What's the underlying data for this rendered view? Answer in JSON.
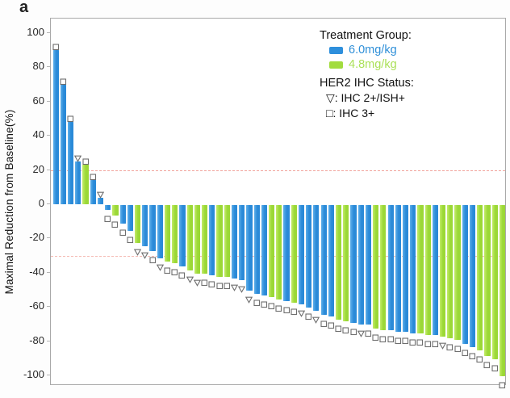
{
  "panel_label": "a",
  "colors": {
    "blue": "#2E8FDC",
    "green": "#A2DC3E",
    "blue_gradient": [
      "#5FB0EA",
      "#2A8AD8"
    ],
    "green_gradient": [
      "#C3EC6A",
      "#9BD836"
    ],
    "refline": "#F2A49C",
    "marker_stroke": "#6E6E6E",
    "frame": "#A9A9A9",
    "legend_blue_text": "#2E8FD8",
    "legend_green_text": "#ABE159"
  },
  "legend": {
    "treatment_title": "Treatment Group:",
    "groups": [
      {
        "key": "6.0",
        "label": "6.0mg/kg"
      },
      {
        "key": "4.8",
        "label": "4.8mg/kg"
      }
    ],
    "her2_title": "HER2 IHC Status:",
    "her2_items": [
      {
        "glyph": "tri",
        "label": "▽: IHC 2+/ISH+"
      },
      {
        "glyph": "sq",
        "label": "□: IHC 3+"
      }
    ]
  },
  "chart_data": {
    "type": "bar",
    "subtype": "waterfall",
    "title": "",
    "xlabel": "",
    "ylabel": "Maximal Reduction from Baseline(%)",
    "ylim": [
      -106,
      108
    ],
    "yticks": [
      100,
      80,
      60,
      40,
      20,
      0,
      -20,
      -40,
      -60,
      -80,
      -100
    ],
    "grid": false,
    "legend_position": "top-right",
    "reference_lines": [
      {
        "y": 20
      },
      {
        "y": -30
      }
    ],
    "series_key": {
      "6.0": "6.0mg/kg",
      "4.8": "4.8mg/kg"
    },
    "marker_key": {
      "sq": "IHC 3+",
      "tri": "IHC 2+/ISH+"
    },
    "bars": [
      {
        "value": 90,
        "group": "6.0",
        "ihc": "sq"
      },
      {
        "value": 70,
        "group": "6.0",
        "ihc": "sq"
      },
      {
        "value": 48,
        "group": "6.0",
        "ihc": "sq"
      },
      {
        "value": 25,
        "group": "6.0",
        "ihc": "tri"
      },
      {
        "value": 23,
        "group": "4.8",
        "ihc": "sq"
      },
      {
        "value": 14,
        "group": "6.0",
        "ihc": "sq"
      },
      {
        "value": 4,
        "group": "6.0",
        "ihc": "tri"
      },
      {
        "value": -3,
        "group": "6.0",
        "ihc": "sq"
      },
      {
        "value": -6,
        "group": "4.8",
        "ihc": "sq"
      },
      {
        "value": -11,
        "group": "6.0",
        "ihc": "sq"
      },
      {
        "value": -15,
        "group": "6.0",
        "ihc": "sq"
      },
      {
        "value": -22,
        "group": "4.8",
        "ihc": "tri"
      },
      {
        "value": -24,
        "group": "6.0",
        "ihc": "tri"
      },
      {
        "value": -27,
        "group": "6.0",
        "ihc": "sq"
      },
      {
        "value": -31,
        "group": "6.0",
        "ihc": "tri"
      },
      {
        "value": -33,
        "group": "4.8",
        "ihc": "sq"
      },
      {
        "value": -34,
        "group": "4.8",
        "ihc": "sq"
      },
      {
        "value": -36,
        "group": "6.0",
        "ihc": "sq"
      },
      {
        "value": -38,
        "group": "4.8",
        "ihc": "tri"
      },
      {
        "value": -40,
        "group": "4.8",
        "ihc": "tri"
      },
      {
        "value": -40,
        "group": "4.8",
        "ihc": "sq"
      },
      {
        "value": -41,
        "group": "6.0",
        "ihc": "sq"
      },
      {
        "value": -42,
        "group": "4.8",
        "ihc": "sq"
      },
      {
        "value": -42,
        "group": "4.8",
        "ihc": "sq"
      },
      {
        "value": -43,
        "group": "6.0",
        "ihc": "tri"
      },
      {
        "value": -44,
        "group": "6.0",
        "ihc": "tri"
      },
      {
        "value": -50,
        "group": "6.0",
        "ihc": "tri"
      },
      {
        "value": -52,
        "group": "6.0",
        "ihc": "sq"
      },
      {
        "value": -53,
        "group": "6.0",
        "ihc": "sq"
      },
      {
        "value": -54,
        "group": "4.8",
        "ihc": "sq"
      },
      {
        "value": -55,
        "group": "4.8",
        "ihc": "sq"
      },
      {
        "value": -56,
        "group": "6.0",
        "ihc": "sq"
      },
      {
        "value": -57,
        "group": "4.8",
        "ihc": "sq"
      },
      {
        "value": -58,
        "group": "6.0",
        "ihc": "tri"
      },
      {
        "value": -60,
        "group": "6.0",
        "ihc": "sq"
      },
      {
        "value": -62,
        "group": "6.0",
        "ihc": "tri"
      },
      {
        "value": -64,
        "group": "6.0",
        "ihc": "sq"
      },
      {
        "value": -65,
        "group": "6.0",
        "ihc": "sq"
      },
      {
        "value": -67,
        "group": "4.8",
        "ihc": "sq"
      },
      {
        "value": -68,
        "group": "4.8",
        "ihc": "sq"
      },
      {
        "value": -69,
        "group": "6.0",
        "ihc": "sq"
      },
      {
        "value": -70,
        "group": "6.0",
        "ihc": "tri"
      },
      {
        "value": -70,
        "group": "6.0",
        "ihc": "sq"
      },
      {
        "value": -72,
        "group": "4.8",
        "ihc": "sq"
      },
      {
        "value": -73,
        "group": "4.8",
        "ihc": "sq"
      },
      {
        "value": -73,
        "group": "6.0",
        "ihc": "sq"
      },
      {
        "value": -74,
        "group": "6.0",
        "ihc": "sq"
      },
      {
        "value": -74,
        "group": "6.0",
        "ihc": "sq"
      },
      {
        "value": -75,
        "group": "6.0",
        "ihc": "sq"
      },
      {
        "value": -75,
        "group": "4.8",
        "ihc": "sq"
      },
      {
        "value": -76,
        "group": "4.8",
        "ihc": "sq"
      },
      {
        "value": -76,
        "group": "6.0",
        "ihc": "sq"
      },
      {
        "value": -77,
        "group": "4.8",
        "ihc": "tri"
      },
      {
        "value": -78,
        "group": "4.8",
        "ihc": "sq"
      },
      {
        "value": -79,
        "group": "4.8",
        "ihc": "sq"
      },
      {
        "value": -81,
        "group": "6.0",
        "ihc": "sq"
      },
      {
        "value": -83,
        "group": "6.0",
        "ihc": "sq"
      },
      {
        "value": -85,
        "group": "4.8",
        "ihc": "sq"
      },
      {
        "value": -88,
        "group": "4.8",
        "ihc": "sq"
      },
      {
        "value": -90,
        "group": "4.8",
        "ihc": "sq"
      },
      {
        "value": -100,
        "group": "4.8",
        "ihc": "sq"
      }
    ]
  }
}
